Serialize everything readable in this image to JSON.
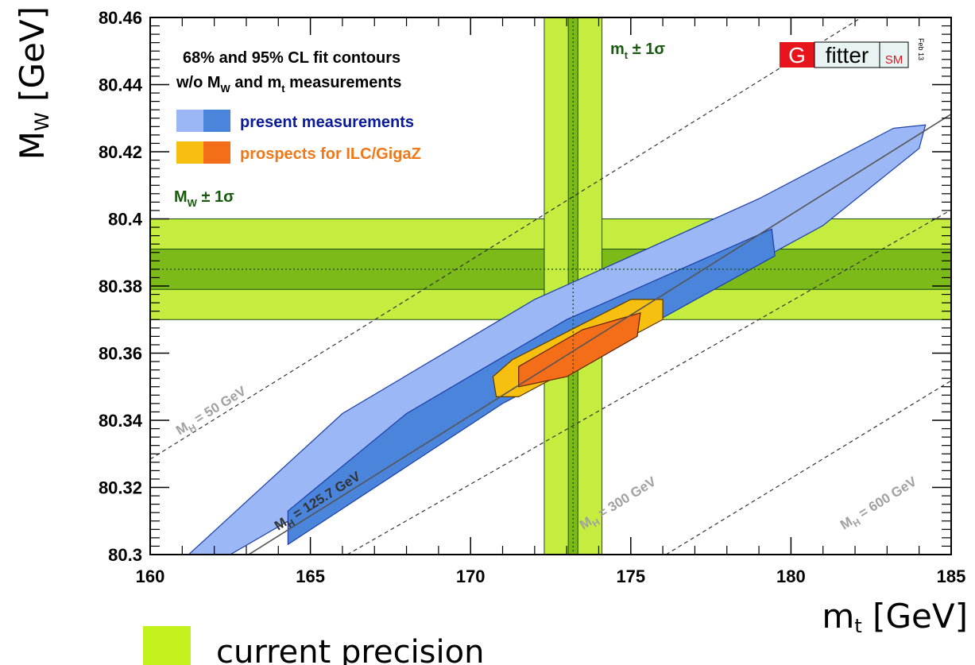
{
  "chart_data": {
    "type": "contour",
    "xlabel_main": "m",
    "xlabel_sub": "t",
    "xlabel_unit": "[GeV]",
    "ylabel": "M",
    "ylabel_sub": "W",
    "ylabel_unit": "[GeV]",
    "xlim": [
      160,
      185
    ],
    "ylim": [
      80.3,
      80.46
    ],
    "x_ticks": [
      {
        "value": 160,
        "label": "160"
      },
      {
        "value": 165,
        "label": "165"
      },
      {
        "value": 170,
        "label": "170"
      },
      {
        "value": 175,
        "label": "175"
      },
      {
        "value": 180,
        "label": "180"
      },
      {
        "value": 185,
        "label": "185"
      }
    ],
    "y_ticks": [
      {
        "value": 80.3,
        "label": "80.3"
      },
      {
        "value": 80.32,
        "label": "80.32"
      },
      {
        "value": 80.34,
        "label": "80.34"
      },
      {
        "value": 80.36,
        "label": "80.36"
      },
      {
        "value": 80.38,
        "label": "80.38"
      },
      {
        "value": 80.4,
        "label": "80.4"
      },
      {
        "value": 80.42,
        "label": "80.42"
      },
      {
        "value": 80.44,
        "label": "80.44"
      },
      {
        "value": 80.46,
        "label": "80.46"
      }
    ],
    "title_lines": [
      "68% and 95% CL fit contours",
      "w/o M",
      "W",
      " and m",
      "t",
      " measurements"
    ],
    "legend": [
      {
        "label": "present measurements",
        "color": "#0a1a9c"
      },
      {
        "label": "prospects for ILC/GigaZ",
        "color": "#f07818"
      }
    ],
    "mw_band": {
      "label_main": "M",
      "label_sub": "W",
      "label_rest": " ± 1σ",
      "center": 80.385,
      "sigma1": 0.006,
      "sigma2": 0.015
    },
    "mt_band": {
      "label_main": "m",
      "label_sub": "t",
      "label_rest": " ± 1σ",
      "center": 173.2,
      "sigma1": 0.15,
      "sigma2": 0.9
    },
    "mh_lines": [
      {
        "label": "M",
        "sub": "H",
        "rest": " = 50 GeV",
        "x": [
          160,
          185
        ],
        "y": [
          80.3284,
          80.4766
        ]
      },
      {
        "label": "M",
        "sub": "H",
        "rest": " = 125.7 GeV",
        "x": [
          160,
          185
        ],
        "y": [
          80.2816,
          80.4312
        ]
      },
      {
        "label": "M",
        "sub": "H",
        "rest": " = 300 GeV",
        "x": [
          166.15,
          185
        ],
        "y": [
          80.3,
          80.4027
        ]
      },
      {
        "label": "M",
        "sub": "H",
        "rest": " = 600 GeV",
        "x": [
          176.1,
          185
        ],
        "y": [
          80.3,
          80.3518
        ]
      }
    ],
    "contours": {
      "present_95": [
        [
          161.2,
          80.3
        ],
        [
          162.5,
          80.3
        ],
        [
          171,
          80.347
        ],
        [
          176,
          80.372
        ],
        [
          181,
          80.398
        ],
        [
          184,
          80.421
        ],
        [
          184.2,
          80.428
        ],
        [
          183.2,
          80.427
        ],
        [
          179,
          80.406
        ],
        [
          172,
          80.376
        ],
        [
          166,
          80.342
        ]
      ],
      "present_68": [
        [
          164.3,
          80.303
        ],
        [
          171,
          80.345
        ],
        [
          174,
          80.36
        ],
        [
          179.5,
          80.389
        ],
        [
          179.4,
          80.397
        ],
        [
          173,
          80.37
        ],
        [
          168,
          80.342
        ],
        [
          164.3,
          80.313
        ]
      ],
      "ilc_95": [
        [
          170.8,
          80.347
        ],
        [
          171.5,
          80.347
        ],
        [
          176,
          80.37
        ],
        [
          176,
          80.376
        ],
        [
          175,
          80.376
        ],
        [
          171.3,
          80.358
        ],
        [
          170.7,
          80.353
        ]
      ],
      "ilc_68": [
        [
          171.5,
          80.35
        ],
        [
          173,
          80.353
        ],
        [
          175.2,
          80.365
        ],
        [
          175.3,
          80.372
        ],
        [
          173.5,
          80.367
        ],
        [
          171.5,
          80.356
        ]
      ]
    },
    "colors": {
      "mw_outer": "#c4ed40",
      "mw_inner": "#7cba1a",
      "present_95": "#9bb7f5",
      "present_68": "#4a84db",
      "present_edge": "#1a3ea8",
      "ilc_95": "#f7c010",
      "ilc_68": "#f46e1a"
    }
  },
  "logo": {
    "g": "G",
    "fitter": "fitter",
    "sm": "SM",
    "date": "Feb 13"
  },
  "footer": {
    "precision_label": "current precision"
  }
}
